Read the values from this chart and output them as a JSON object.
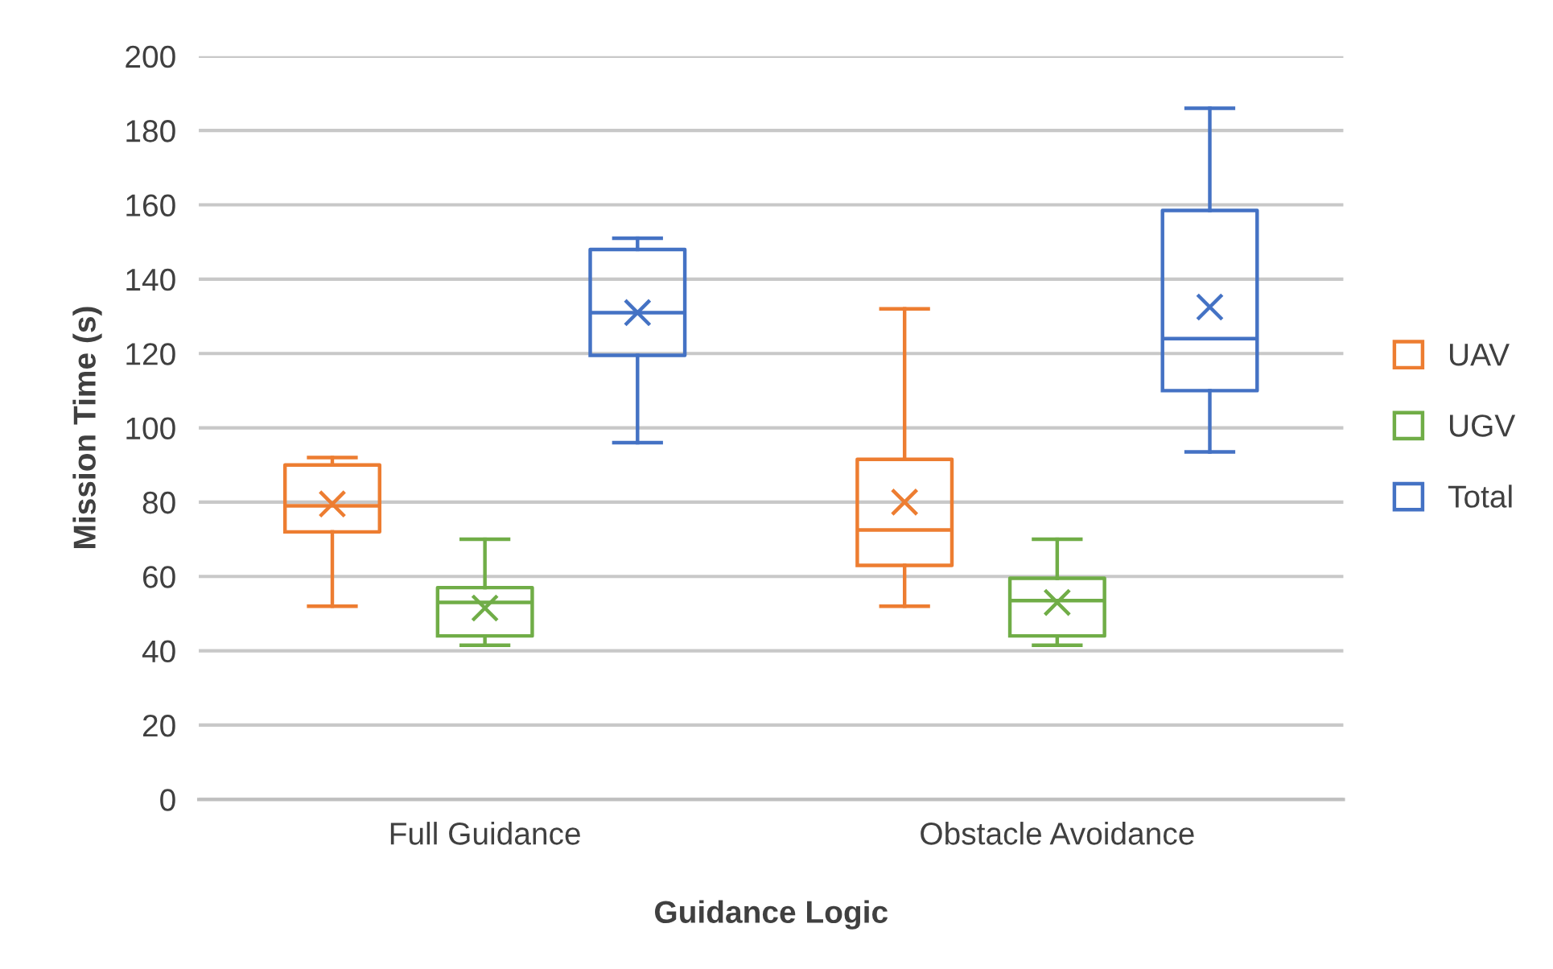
{
  "chart_data": {
    "type": "box",
    "xlabel": "Guidance Logic",
    "ylabel": "Mission Time (s)",
    "categories": [
      "Full Guidance",
      "Obstacle Avoidance"
    ],
    "series": [
      {
        "name": "UAV",
        "color": "#ed7d31",
        "boxes": [
          {
            "low": 52,
            "q1": 72,
            "median": 79,
            "q3": 90,
            "high": 92,
            "mean": 79.5
          },
          {
            "low": 52,
            "q1": 63,
            "median": 72.5,
            "q3": 91.5,
            "high": 132,
            "mean": 80
          }
        ]
      },
      {
        "name": "UGV",
        "color": "#70ad47",
        "boxes": [
          {
            "low": 41.5,
            "q1": 44,
            "median": 53,
            "q3": 57,
            "high": 70,
            "mean": 51.5
          },
          {
            "low": 41.5,
            "q1": 44,
            "median": 53.5,
            "q3": 59.5,
            "high": 70,
            "mean": 53
          }
        ]
      },
      {
        "name": "Total",
        "color": "#4472c4",
        "boxes": [
          {
            "low": 96,
            "q1": 119.5,
            "median": 131,
            "q3": 148,
            "high": 151,
            "mean": 131
          },
          {
            "low": 93.5,
            "q1": 110,
            "median": 124,
            "q3": 158.5,
            "high": 186,
            "mean": 132.5
          }
        ]
      }
    ],
    "ylim": [
      0,
      200
    ],
    "yticks": [
      0,
      20,
      40,
      60,
      80,
      100,
      120,
      140,
      160,
      180,
      200
    ],
    "grid": "y",
    "legend": "right"
  }
}
